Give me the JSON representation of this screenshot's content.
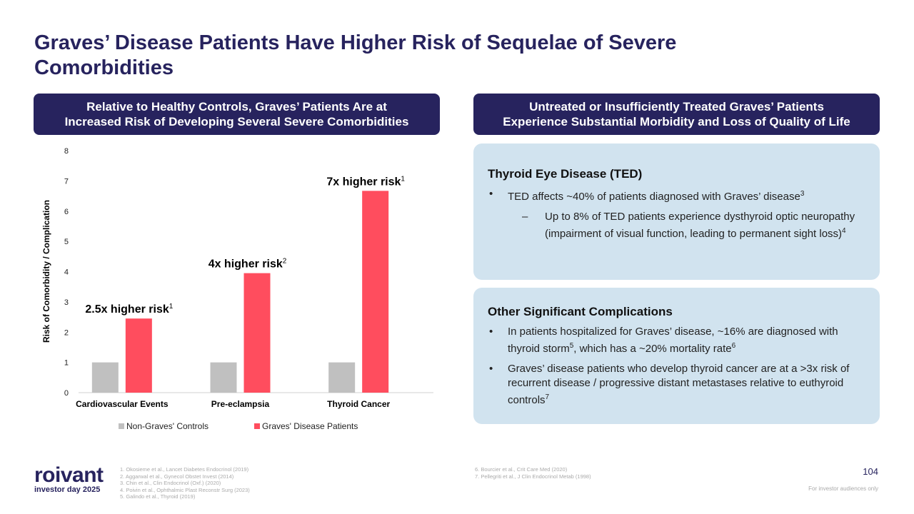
{
  "title": "Graves’ Disease Patients Have Higher Risk of Sequelae of Severe Comorbidities",
  "left_header": [
    "Relative to Healthy Controls, Graves’ Patients Are at",
    "Increased Risk of Developing Several Severe Comorbidities"
  ],
  "right_header": [
    "Untreated or Insufficiently Treated Graves’ Patients",
    "Experience Substantial Morbidity and Loss of Quality of Life"
  ],
  "ted": {
    "heading": "Thyroid Eye Disease (TED)",
    "bullet": "TED affects ~40% of patients diagnosed with Graves’ disease",
    "bullet_sup": "3",
    "sub": "Up to 8% of TED patients experience dysthyroid optic neuropathy (impairment of visual function, leading to permanent sight loss)",
    "sub_sup": "4"
  },
  "other": {
    "heading": "Other Significant Complications",
    "b1a": "In patients hospitalized for Graves’ disease, ~16% are diagnosed with thyroid storm",
    "b1s1": "5",
    "b1b": ", which has a ~20% mortality rate",
    "b1s2": "6",
    "b2": "Graves’ disease patients who develop thyroid cancer are at a >3x risk of recurrent disease / progressive distant metastases relative to euthyroid controls",
    "b2s": "7"
  },
  "chart_data": {
    "type": "bar",
    "ylabel": "Risk of Comorbidity / Complication",
    "ylim": [
      0,
      8
    ],
    "yticks": [
      "0",
      "1",
      "2",
      "3",
      "4",
      "5",
      "6",
      "7",
      "8"
    ],
    "categories": [
      "Cardiovascular Events",
      "Pre-eclampsia",
      "Thyroid Cancer"
    ],
    "series": [
      {
        "name": "Non-Graves' Controls",
        "color": "#c0c0c0",
        "values": [
          1,
          1,
          1
        ]
      },
      {
        "name": "Graves' Disease Patients",
        "color": "#ff4d5e",
        "values": [
          2.45,
          3.95,
          6.67
        ]
      }
    ],
    "annotations": [
      {
        "text": "2.5x higher risk",
        "sup": "1"
      },
      {
        "text": "4x higher risk",
        "sup": "2"
      },
      {
        "text": "7x higher risk",
        "sup": "1"
      }
    ],
    "legend": "bottom"
  },
  "footnotes_left": [
    "1. Okosieme et al., Lancet Diabetes Endocrinol (2019)",
    "2. Aggarwal et al., Gynecol Obstet Invest (2014)",
    "3. Chin et al., Clin Endocrinol (Oxf.) (2020)",
    "4. Poivin et al., Ophthalmic Plast Reconstr Surg (2023)",
    "5. Galindo et al., Thyroid (2019)"
  ],
  "footnotes_right": [
    "6. Bourcier et al., Crit Care Med (2020)",
    "7. Pellegriti et al., J Clin Endocrinol Metab (1998)"
  ],
  "logo": {
    "name": "roivant",
    "tagline": "investor day 2025"
  },
  "page_number": "104",
  "disclaimer": "For investor audiences only"
}
